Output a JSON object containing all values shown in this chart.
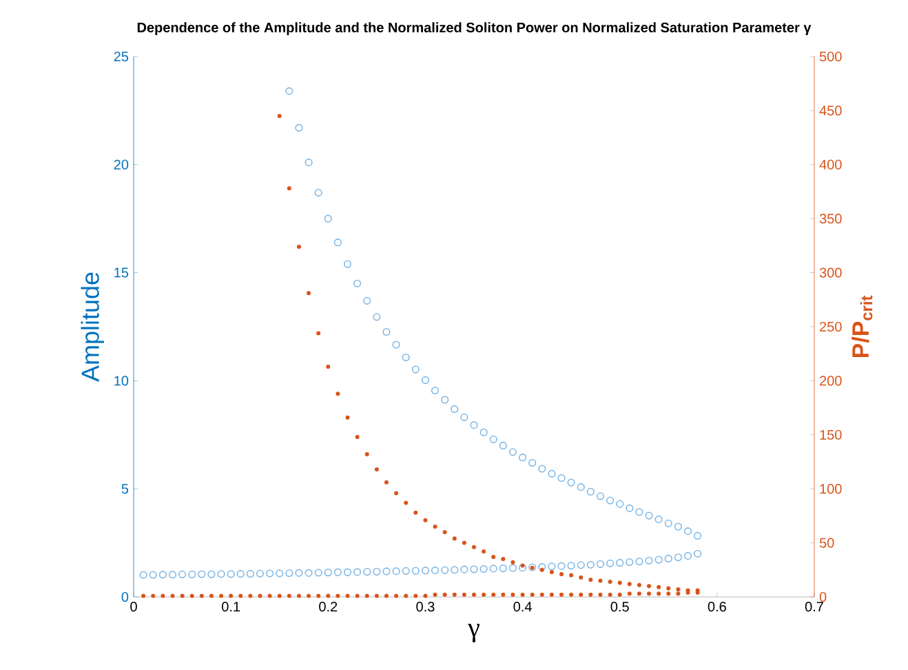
{
  "chart_data": {
    "type": "scatter",
    "title": "Dependence of the Amplitude and the Normalized Soliton Power on Normalized Saturation Parameter γ",
    "xlabel": "γ",
    "ylabel": "Amplitude",
    "y2label": "P/P$_{crit}$",
    "xlim": [
      0,
      0.7
    ],
    "xticks": [
      0,
      0.1,
      0.2,
      0.3,
      0.4,
      0.5,
      0.6,
      0.7
    ],
    "ylim": [
      0,
      25
    ],
    "yticks": [
      0,
      5,
      10,
      15,
      20,
      25
    ],
    "y2lim": [
      0,
      500
    ],
    "y2ticks": [
      0,
      50,
      100,
      150,
      200,
      250,
      300,
      350,
      400,
      450,
      500
    ],
    "series": [
      {
        "color": "#7fb8e6",
        "marker": "circle",
        "x": [
          0.16,
          0.17,
          0.18,
          0.19,
          0.2,
          0.21,
          0.22,
          0.23,
          0.24,
          0.25,
          0.26,
          0.27,
          0.28,
          0.29,
          0.3,
          0.31,
          0.32,
          0.33,
          0.34,
          0.35,
          0.36,
          0.37,
          0.38,
          0.39,
          0.4,
          0.41,
          0.42,
          0.43,
          0.44,
          0.45,
          0.46,
          0.47,
          0.48,
          0.49,
          0.5,
          0.51,
          0.52,
          0.53,
          0.54,
          0.55,
          0.56,
          0.57,
          0.58
        ],
        "values": [
          23.4,
          21.7,
          20.1,
          18.7,
          17.5,
          16.4,
          15.4,
          14.5,
          13.7,
          12.95,
          12.26,
          11.67,
          11.08,
          10.52,
          10.03,
          9.55,
          9.12,
          8.69,
          8.31,
          7.95,
          7.61,
          7.29,
          7.0,
          6.7,
          6.45,
          6.2,
          5.93,
          5.7,
          5.5,
          5.29,
          5.08,
          4.87,
          4.66,
          4.46,
          4.3,
          4.1,
          3.93,
          3.76,
          3.59,
          3.4,
          3.25,
          3.04,
          2.83
        ]
      },
      {
        "color": "#7fb8e6",
        "marker": "circle",
        "x": [
          0.01,
          0.02,
          0.03,
          0.04,
          0.05,
          0.06,
          0.07,
          0.08,
          0.09,
          0.1,
          0.11,
          0.12,
          0.13,
          0.14,
          0.15,
          0.16,
          0.17,
          0.18,
          0.19,
          0.2,
          0.21,
          0.22,
          0.23,
          0.24,
          0.25,
          0.26,
          0.27,
          0.28,
          0.29,
          0.3,
          0.31,
          0.32,
          0.33,
          0.34,
          0.35,
          0.36,
          0.37,
          0.38,
          0.39,
          0.4,
          0.41,
          0.42,
          0.43,
          0.44,
          0.45,
          0.46,
          0.47,
          0.48,
          0.49,
          0.5,
          0.51,
          0.52,
          0.53,
          0.54,
          0.55,
          0.56,
          0.57,
          0.58
        ],
        "values": [
          1.02,
          1.02,
          1.03,
          1.03,
          1.04,
          1.04,
          1.05,
          1.05,
          1.06,
          1.06,
          1.07,
          1.07,
          1.08,
          1.09,
          1.09,
          1.1,
          1.11,
          1.11,
          1.12,
          1.13,
          1.14,
          1.14,
          1.15,
          1.16,
          1.17,
          1.18,
          1.19,
          1.2,
          1.21,
          1.22,
          1.23,
          1.24,
          1.25,
          1.27,
          1.28,
          1.29,
          1.31,
          1.32,
          1.34,
          1.35,
          1.37,
          1.39,
          1.41,
          1.43,
          1.45,
          1.47,
          1.49,
          1.52,
          1.55,
          1.58,
          1.61,
          1.64,
          1.68,
          1.72,
          1.77,
          1.83,
          1.9,
          2.0
        ]
      },
      {
        "color": "#d95319",
        "marker": "circle",
        "axis": "y2",
        "x": [
          0.15,
          0.16,
          0.17,
          0.18,
          0.19,
          0.2,
          0.21,
          0.22,
          0.23,
          0.24,
          0.25,
          0.26,
          0.27,
          0.28,
          0.29,
          0.3,
          0.31,
          0.32,
          0.33,
          0.34,
          0.35,
          0.36,
          0.37,
          0.38,
          0.39,
          0.4,
          0.41,
          0.42,
          0.43,
          0.44,
          0.45,
          0.46,
          0.47,
          0.48,
          0.49,
          0.5,
          0.51,
          0.52,
          0.53,
          0.54,
          0.55,
          0.56,
          0.57,
          0.58
        ],
        "values": [
          445,
          378,
          324,
          281,
          244,
          213,
          188,
          166,
          148,
          132,
          118,
          106,
          96,
          87,
          78,
          71,
          65,
          60,
          54,
          50,
          46,
          42,
          37,
          35,
          32,
          29,
          27,
          25,
          23,
          21,
          20,
          18,
          16,
          15,
          14,
          13,
          12,
          11,
          10,
          9,
          8,
          7,
          6,
          6
        ]
      },
      {
        "color": "#d95319",
        "marker": "circle",
        "axis": "y2",
        "x": [
          0.01,
          0.02,
          0.03,
          0.04,
          0.05,
          0.06,
          0.07,
          0.08,
          0.09,
          0.1,
          0.11,
          0.12,
          0.13,
          0.14,
          0.15,
          0.16,
          0.17,
          0.18,
          0.19,
          0.2,
          0.21,
          0.22,
          0.23,
          0.24,
          0.25,
          0.26,
          0.27,
          0.28,
          0.29,
          0.3,
          0.31,
          0.32,
          0.33,
          0.34,
          0.35,
          0.36,
          0.37,
          0.38,
          0.39,
          0.4,
          0.41,
          0.42,
          0.43,
          0.44,
          0.45,
          0.46,
          0.47,
          0.48,
          0.49,
          0.5,
          0.51,
          0.52,
          0.53,
          0.54,
          0.55,
          0.56,
          0.57,
          0.58
        ],
        "values": [
          1,
          1,
          1,
          1,
          1,
          1,
          1,
          1,
          1,
          1,
          1,
          1,
          1,
          1,
          1,
          1,
          1,
          1,
          1,
          1,
          1,
          1,
          1,
          1,
          1,
          1,
          1,
          1,
          1,
          1,
          2,
          2,
          2,
          2,
          2,
          2,
          2,
          2,
          2,
          2,
          2,
          2,
          2,
          2,
          2,
          2,
          2,
          2,
          2,
          2,
          3,
          3,
          3,
          3,
          3,
          3,
          4,
          4
        ]
      }
    ]
  }
}
